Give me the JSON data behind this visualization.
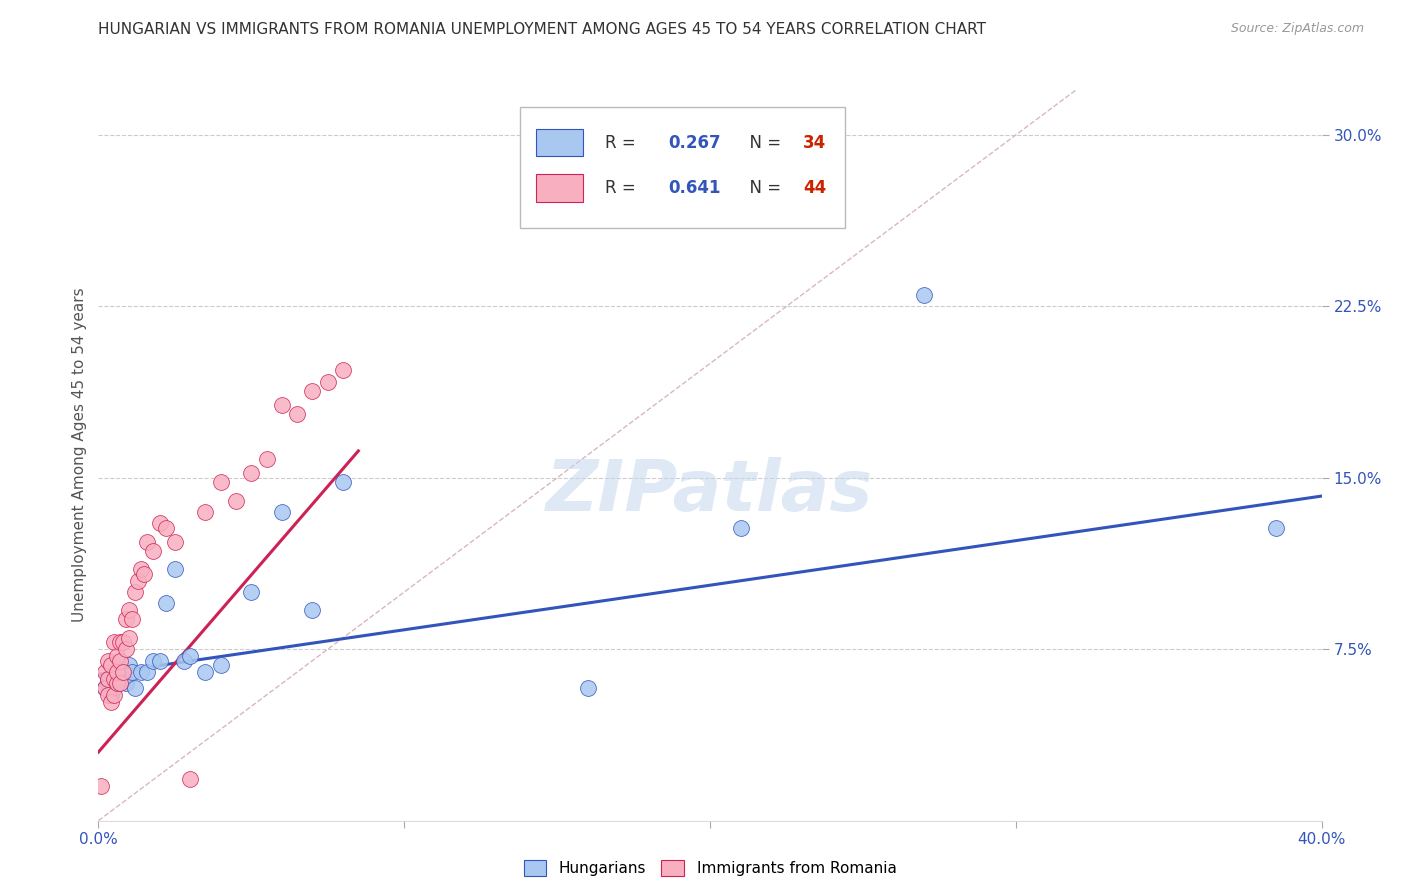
{
  "title": "HUNGARIAN VS IMMIGRANTS FROM ROMANIA UNEMPLOYMENT AMONG AGES 45 TO 54 YEARS CORRELATION CHART",
  "source": "Source: ZipAtlas.com",
  "ylabel": "Unemployment Among Ages 45 to 54 years",
  "xlim": [
    0.0,
    0.4
  ],
  "ylim": [
    0.0,
    0.32
  ],
  "color_hungarian": "#A8C8F0",
  "color_romania": "#F8B0C0",
  "color_hungarian_line": "#3355BB",
  "color_romania_line": "#CC2255",
  "color_diagonal": "#E0C8C8",
  "legend_R1": "0.267",
  "legend_N1": "34",
  "legend_R2": "0.641",
  "legend_N2": "44",
  "hu_intercept": 0.064,
  "hu_slope": 0.195,
  "ro_intercept": 0.03,
  "ro_slope": 1.55,
  "ro_line_xmax": 0.085,
  "hungarian_x": [
    0.002,
    0.003,
    0.003,
    0.004,
    0.004,
    0.005,
    0.005,
    0.006,
    0.006,
    0.007,
    0.007,
    0.008,
    0.009,
    0.01,
    0.011,
    0.012,
    0.014,
    0.016,
    0.018,
    0.02,
    0.022,
    0.025,
    0.028,
    0.03,
    0.035,
    0.04,
    0.05,
    0.06,
    0.07,
    0.08,
    0.16,
    0.21,
    0.27,
    0.385
  ],
  "hungarian_y": [
    0.058,
    0.06,
    0.062,
    0.055,
    0.062,
    0.058,
    0.065,
    0.06,
    0.065,
    0.062,
    0.067,
    0.063,
    0.06,
    0.068,
    0.065,
    0.058,
    0.065,
    0.065,
    0.07,
    0.07,
    0.095,
    0.11,
    0.07,
    0.072,
    0.065,
    0.068,
    0.1,
    0.135,
    0.092,
    0.148,
    0.058,
    0.128,
    0.23,
    0.128
  ],
  "romania_x": [
    0.001,
    0.002,
    0.002,
    0.003,
    0.003,
    0.003,
    0.004,
    0.004,
    0.005,
    0.005,
    0.005,
    0.006,
    0.006,
    0.006,
    0.007,
    0.007,
    0.007,
    0.008,
    0.008,
    0.009,
    0.009,
    0.01,
    0.01,
    0.011,
    0.012,
    0.013,
    0.014,
    0.015,
    0.016,
    0.018,
    0.02,
    0.022,
    0.025,
    0.03,
    0.035,
    0.04,
    0.045,
    0.05,
    0.055,
    0.06,
    0.065,
    0.07,
    0.075,
    0.08
  ],
  "romania_y": [
    0.015,
    0.058,
    0.065,
    0.055,
    0.062,
    0.07,
    0.052,
    0.068,
    0.055,
    0.062,
    0.078,
    0.06,
    0.065,
    0.072,
    0.06,
    0.07,
    0.078,
    0.065,
    0.078,
    0.075,
    0.088,
    0.08,
    0.092,
    0.088,
    0.1,
    0.105,
    0.11,
    0.108,
    0.122,
    0.118,
    0.13,
    0.128,
    0.122,
    0.018,
    0.135,
    0.148,
    0.14,
    0.152,
    0.158,
    0.182,
    0.178,
    0.188,
    0.192,
    0.197
  ]
}
